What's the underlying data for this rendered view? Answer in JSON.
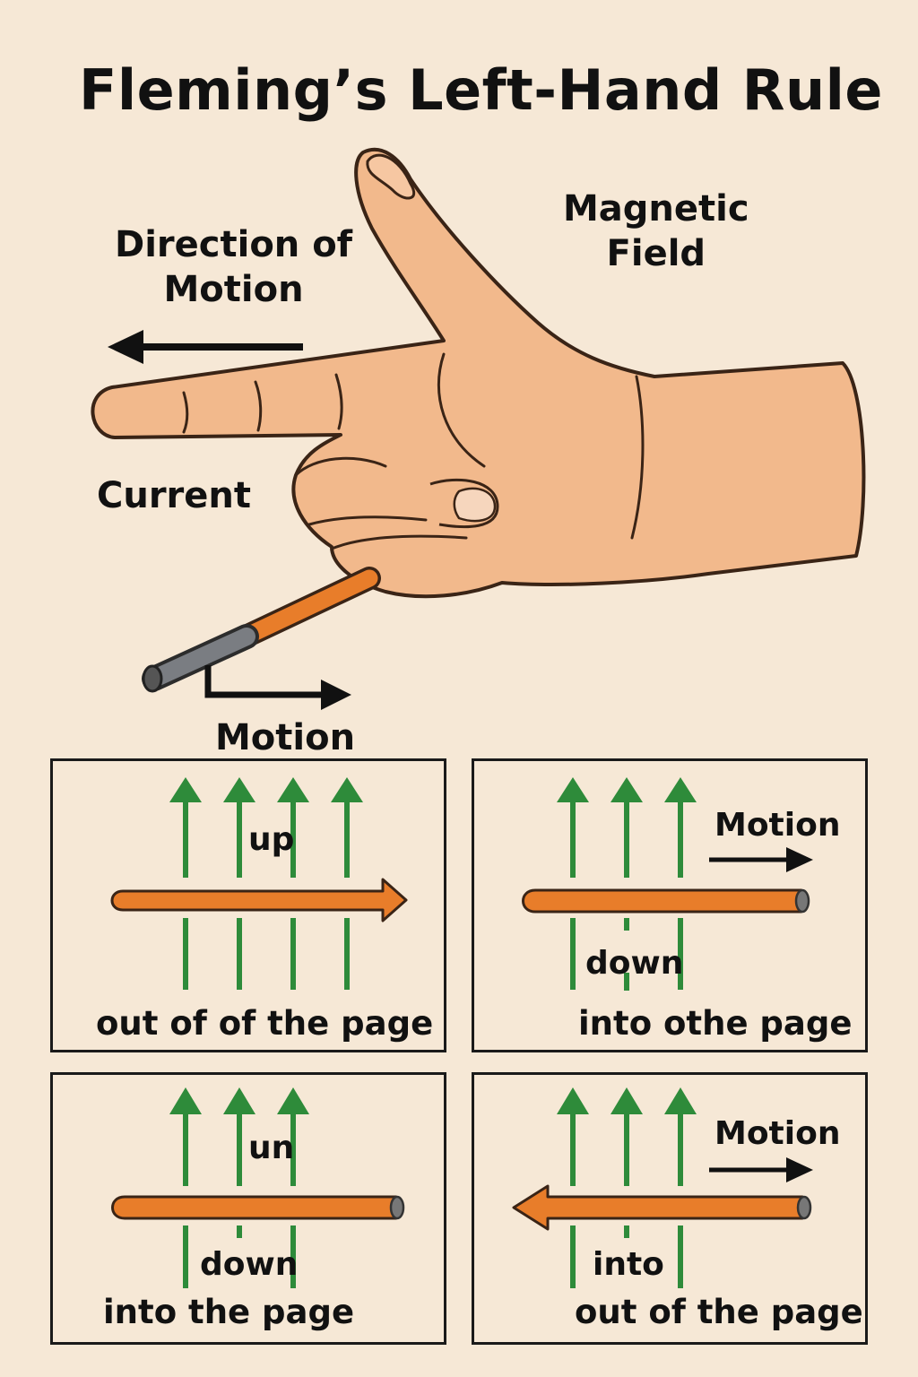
{
  "title": "Fleming’s Left-Hand Rule",
  "hand_labels": {
    "direction_of_motion": "Direction of\nMotion",
    "magnetic_field": "Magnetic\nField",
    "current": "Current",
    "motion": "Motion"
  },
  "panels": [
    {
      "field_text": "up",
      "motion_text": "",
      "caption": "out of of the page"
    },
    {
      "field_text": "down",
      "motion_text": "Motion",
      "caption": "into othe page"
    },
    {
      "field_text": "un",
      "field_text_2": "down",
      "motion_text": "",
      "caption": "into the page"
    },
    {
      "field_text": "into",
      "motion_text": "Motion",
      "caption": "out of the page"
    }
  ],
  "colors": {
    "background": "#f6e8d6",
    "skin": "#f2b98c",
    "field_arrow": "#2e8b3a",
    "conductor": "#e87d2a",
    "outline": "#1a1a1a"
  }
}
